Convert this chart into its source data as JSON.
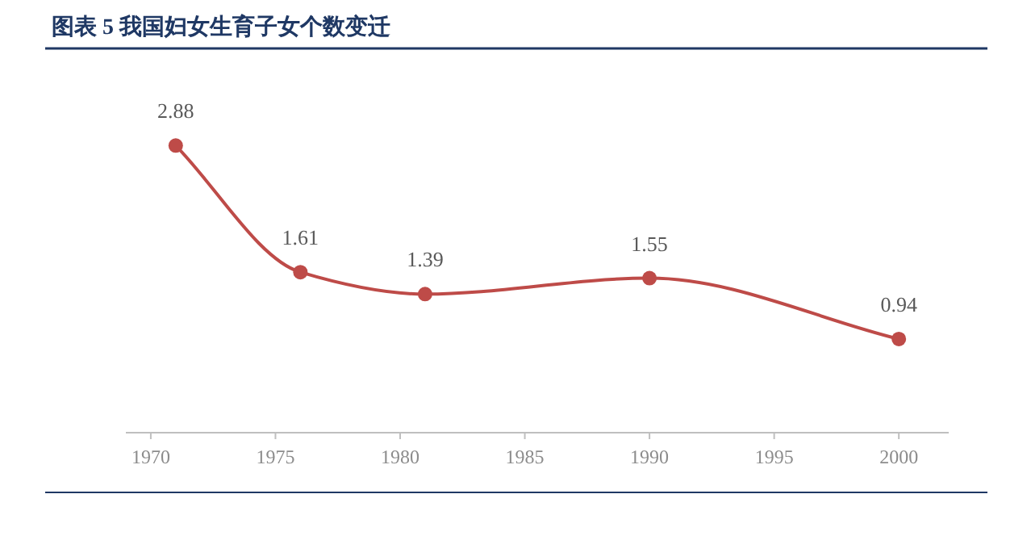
{
  "chart_data": {
    "type": "line",
    "title": "图表 5   我国妇女生育子女个数变迁",
    "x": [
      1971,
      1976,
      1981,
      1990,
      2000
    ],
    "series": [
      {
        "color": "#be4b48",
        "values": [
          2.88,
          1.61,
          1.39,
          1.55,
          0.94
        ]
      }
    ],
    "xlim": [
      1969,
      2002
    ],
    "xticks": [
      1970,
      1975,
      1980,
      1985,
      1990,
      1995,
      2000
    ],
    "tick_labels": "x",
    "data_labels": true,
    "marker": "circle",
    "line_style": "solid"
  }
}
